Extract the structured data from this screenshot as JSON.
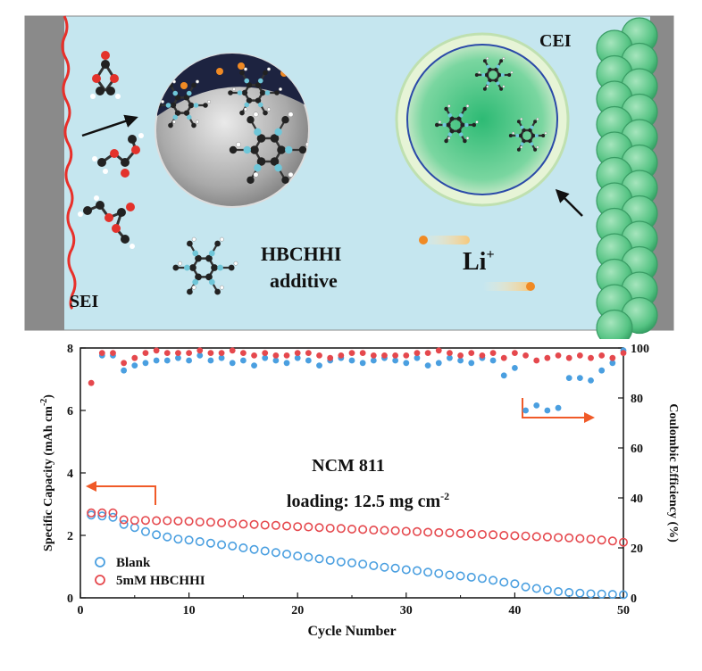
{
  "schematic": {
    "label_cei": "CEI",
    "label_sei": "SEI",
    "label_additive_line1": "HBCHHI",
    "label_additive_line2": "additive",
    "label_li": "Li",
    "label_li_sup": "+",
    "colors": {
      "electrolyte": "#c5e6ef",
      "electrode": "#8a8a8a",
      "sei": "#e8302a",
      "cathode": "#5ecb8a"
    }
  },
  "chart_data": {
    "type": "scatter",
    "xlabel": "Cycle Number",
    "ylabel_left": "Specific Capacity (mAh cm",
    "ylabel_left_sup": "-2",
    "ylabel_left_end": ")",
    "ylabel_right": "Coulombic Efficiency (%)",
    "xlim": [
      0,
      50
    ],
    "ylim_left": [
      0,
      8
    ],
    "ylim_right": [
      0,
      100
    ],
    "x_ticks": [
      "0",
      "10",
      "20",
      "30",
      "40",
      "50"
    ],
    "y_ticks_left": [
      "0",
      "2",
      "4",
      "6",
      "8"
    ],
    "y_ticks_right": [
      "0",
      "20",
      "40",
      "60",
      "80",
      "100"
    ],
    "annotation_line1": "NCM 811",
    "annotation_line2_pre": "loading: 12.5 mg cm",
    "annotation_line2_sup": "-2",
    "legend": [
      "Blank",
      "5mM HBCHHI"
    ],
    "colors": {
      "blank": "#4a9fe0",
      "hbchhi": "#e5484d",
      "arrow": "#f05a28"
    },
    "x": [
      1,
      2,
      3,
      4,
      5,
      6,
      7,
      8,
      9,
      10,
      11,
      12,
      13,
      14,
      15,
      16,
      17,
      18,
      19,
      20,
      21,
      22,
      23,
      24,
      25,
      26,
      27,
      28,
      29,
      30,
      31,
      32,
      33,
      34,
      35,
      36,
      37,
      38,
      39,
      40,
      41,
      42,
      43,
      44,
      45,
      46,
      47,
      48,
      49,
      50
    ],
    "series": [
      {
        "name": "Blank",
        "axis": "capacity",
        "values": [
          2.65,
          2.62,
          2.58,
          2.35,
          2.25,
          2.12,
          2.02,
          1.95,
          1.88,
          1.85,
          1.8,
          1.75,
          1.7,
          1.66,
          1.6,
          1.55,
          1.5,
          1.45,
          1.4,
          1.34,
          1.3,
          1.25,
          1.2,
          1.15,
          1.12,
          1.08,
          1.03,
          0.98,
          0.95,
          0.9,
          0.87,
          0.82,
          0.78,
          0.73,
          0.7,
          0.66,
          0.62,
          0.56,
          0.5,
          0.45,
          0.35,
          0.3,
          0.25,
          0.2,
          0.17,
          0.15,
          0.13,
          0.12,
          0.11,
          0.1
        ]
      },
      {
        "name": "5mM HBCHHI",
        "axis": "capacity",
        "values": [
          2.72,
          2.72,
          2.72,
          2.5,
          2.48,
          2.48,
          2.47,
          2.47,
          2.46,
          2.45,
          2.43,
          2.42,
          2.4,
          2.38,
          2.36,
          2.35,
          2.33,
          2.32,
          2.3,
          2.28,
          2.27,
          2.25,
          2.23,
          2.22,
          2.2,
          2.19,
          2.17,
          2.16,
          2.15,
          2.13,
          2.12,
          2.1,
          2.09,
          2.08,
          2.06,
          2.05,
          2.03,
          2.02,
          2.0,
          1.99,
          1.98,
          1.96,
          1.95,
          1.93,
          1.92,
          1.9,
          1.88,
          1.85,
          1.82,
          1.78
        ]
      },
      {
        "name": "Blank",
        "axis": "efficiency",
        "values": [
          null,
          97,
          97,
          91,
          93,
          94,
          95,
          95,
          96,
          95,
          97,
          95,
          96,
          94,
          95,
          93,
          96,
          95,
          94,
          96,
          95,
          93,
          95,
          96,
          95,
          94,
          95,
          96,
          95,
          94,
          96,
          93,
          94,
          96,
          95,
          94,
          96,
          95,
          89,
          92,
          75,
          77,
          75,
          76,
          88,
          88,
          87,
          91,
          94,
          99
        ]
      },
      {
        "name": "5mM HBCHHI",
        "axis": "efficiency",
        "values": [
          86,
          98,
          98,
          94,
          96,
          98,
          99,
          98,
          98,
          98,
          99,
          98,
          98,
          99,
          98,
          97,
          98,
          97,
          97,
          98,
          98,
          97,
          96,
          97,
          98,
          98,
          97,
          97,
          97,
          97,
          98,
          98,
          99,
          98,
          97,
          98,
          97,
          98,
          96,
          98,
          97,
          95,
          96,
          97,
          96,
          97,
          96,
          97,
          96,
          98
        ]
      }
    ]
  }
}
